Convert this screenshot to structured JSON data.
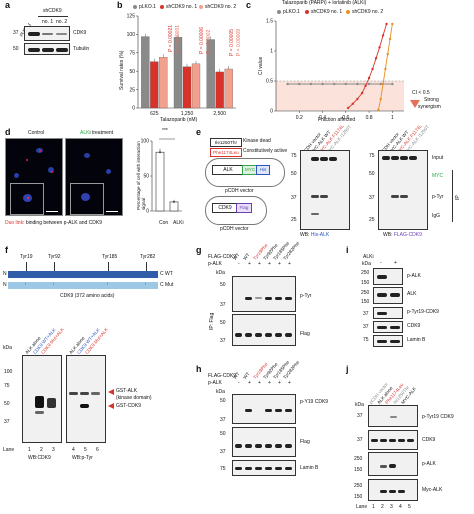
{
  "panels": {
    "a": {
      "letter": "a",
      "header": "shCDK9",
      "lanes": [
        "pLKO.1",
        "no. 1",
        "no. 2"
      ],
      "kda": [
        "37",
        "50"
      ],
      "bands": [
        "CDK9",
        "Tubulin"
      ]
    },
    "b": {
      "letter": "b",
      "legend": [
        "pLKO.1",
        "shCDK9 no. 1",
        "shCDK9 no. 2"
      ],
      "ylabel": "Survival rates (%)",
      "xlabel": "Talazoparib (nM)",
      "pvalues": [
        "P = 0.00021",
        "P = 0.00001",
        "P = 0.00006",
        "P = 0.0002",
        "P = 0.00005",
        "P = 0.00009"
      ]
    },
    "c": {
      "letter": "c",
      "title": "Talazoparib (PARPi) + lorlatinib (ALKi)",
      "legend": [
        "pLKO.1",
        "shCDK9 no. 1",
        "shCDK9 no. 2"
      ],
      "ylabel": "CI value",
      "xlabel": "Fraction affected",
      "annotation_lines": [
        "CI < 0.5",
        "Strong",
        "synergism"
      ]
    },
    "d": {
      "letter": "d",
      "labels": [
        "Control",
        "ALK",
        "i treatment"
      ],
      "caption_red": "Duo link",
      "caption_rest": ": binding between p-ALK and CDK9",
      "ylabel": "Percentage of cell with interaction signal",
      "sig": "***",
      "xcats": [
        "Con",
        "ALKi"
      ]
    },
    "e": {
      "letter": "e",
      "kinase_dead": "Ile1250Thr",
      "kinase_dead_label": "Kinase dead",
      "active": "Phe1174Leu",
      "active_label": "Constitutively active",
      "alk": "ALK",
      "myc": "MYC",
      "his": "His",
      "vector": "pCDH vector",
      "cdk9": "CDK9",
      "flag": "Flag",
      "lanes": [
        "pCDH vector",
        "MYC-ALK WT",
        "MYC-ALK F1174L",
        "MYC-ALK I1250T"
      ],
      "kda": [
        "75",
        "50",
        "37",
        "25",
        "75",
        "50",
        "37",
        "25"
      ],
      "side": [
        "Input",
        "MYC",
        "p-Tyr",
        "IgG",
        "IP"
      ],
      "wb1_prefix": "WB: ",
      "wb1_tag": "His-ALK",
      "wb2_prefix": "WB: ",
      "wb2_tag": "FLAG-CDK9"
    },
    "f": {
      "letter": "f",
      "sites": [
        "Tyr19",
        "Tyr92",
        "Tyr185",
        "Tyr282"
      ],
      "n": "N",
      "wt": "C WT",
      "mut": "C Mut",
      "caption": "CDK9 (372 amino acids)",
      "kda_label": "kDa",
      "kda": [
        "100",
        "75",
        "50",
        "37"
      ],
      "lanes_blot1": [
        "ALK alone",
        "CDK9 WT+ALK",
        "CDK9 Mut+ALK"
      ],
      "lanes_blot2": [
        "ALK alone",
        "CDK9 WT+ALK",
        "CDK9 Mut+ALK"
      ],
      "arrows": [
        "GST-ALK",
        "(kinase domain)",
        "GST-CDK9"
      ],
      "lane_label": "Lane",
      "lane_nums": [
        "1",
        "2",
        "3",
        "4",
        "5",
        "6"
      ],
      "wb": [
        "WB:CDK9",
        "WB:p-Tyr"
      ]
    },
    "g": {
      "letter": "g",
      "row1": "FLAG-CDK9",
      "row2": "p-ALK",
      "signs": [
        "-",
        "+",
        "+",
        "+",
        "+",
        "+"
      ],
      "lanes": [
        "WT",
        "WT",
        "Tyr19Phe",
        "Tyr92Phe",
        "Tyr185Phe",
        "Tyr282Phe"
      ],
      "kda_label": "kDa",
      "kda": [
        "50",
        "37",
        "50",
        "37"
      ],
      "ip": "IP: Flag",
      "bands": [
        "p-Tyr",
        "Flag"
      ]
    },
    "h": {
      "letter": "h",
      "row1": "FLAG-CDK9",
      "row2": "p-ALK",
      "signs": [
        "+",
        "-",
        "+",
        "-",
        "+",
        "-",
        "+",
        "-",
        "+"
      ],
      "lanes": [
        "WT",
        "WT",
        "Tyr19Phe",
        "Tyr92Phe",
        "Tyr185Phe",
        "Tyr282Phe",
        "-"
      ],
      "kda_label": "kDa",
      "kda": [
        "50",
        "37",
        "50",
        "37",
        "75"
      ],
      "bands": [
        "p-Y19 CDK9",
        "Flag",
        "Lamin B"
      ]
    },
    "i": {
      "letter": "i",
      "row": "ALKi",
      "signs": [
        "-",
        "+"
      ],
      "kda_label": "kDa",
      "kda": [
        "250",
        "150",
        "250",
        "150",
        "37",
        "37",
        "75"
      ],
      "bands": [
        "p-ALK",
        "ALK",
        "p-Tyr19-CDK9",
        "CDK9",
        "Lamin B"
      ]
    },
    "j": {
      "letter": "j",
      "lanes": [
        "pCDH vector",
        "ALK alone",
        "Phe1174Leu",
        "Ile1250Thr",
        "MYC-ALK"
      ],
      "kda_label": "kDa",
      "kda": [
        "37",
        "37",
        "250",
        "150",
        "250",
        "150"
      ],
      "bands": [
        "p-Tyr19 CDK9",
        "CDK9",
        "p-ALK",
        "Myc-ALK"
      ],
      "lane_label": "Lane",
      "lane_nums": [
        "1",
        "2",
        "3",
        "4",
        "5"
      ]
    }
  },
  "chart_data": [
    {
      "type": "bar",
      "title": "",
      "xlabel": "Talazoparib (nM)",
      "ylabel": "Survival rates (%)",
      "categories": [
        "625",
        "1,250",
        "2,500"
      ],
      "ylim": [
        0,
        125
      ],
      "yticks": [
        0,
        25,
        50,
        75,
        100,
        125
      ],
      "series": [
        {
          "name": "pLKO.1",
          "values": [
            97,
            96,
            93
          ],
          "color": "#8a8a8a"
        },
        {
          "name": "shCDK9 no. 1",
          "values": [
            63,
            56,
            49
          ],
          "color": "#d8332a"
        },
        {
          "name": "shCDK9 no. 2",
          "values": [
            69,
            60,
            53
          ],
          "color": "#f2a08e"
        }
      ]
    },
    {
      "type": "line",
      "title": "Talazoparib (PARPi) + lorlatinib (ALKi)",
      "xlabel": "Fraction affected",
      "ylabel": "CI value",
      "xlim": [
        0,
        1.1
      ],
      "ylim": [
        0,
        1.5
      ],
      "xticks": [
        0.2,
        0.4,
        0.6,
        0.8,
        1.0
      ],
      "yticks": [
        0,
        0.5,
        1.0,
        1.5
      ],
      "series": [
        {
          "name": "pLKO.1",
          "color": "#8a8a8a",
          "points": [
            [
              0.1,
              0.45
            ],
            [
              0.2,
              0.45
            ],
            [
              0.3,
              0.45
            ],
            [
              0.4,
              0.45
            ],
            [
              0.5,
              0.45
            ],
            [
              0.6,
              0.45
            ],
            [
              0.7,
              0.45
            ],
            [
              0.8,
              0.45
            ],
            [
              0.9,
              0.45
            ],
            [
              1.0,
              0.45
            ]
          ]
        },
        {
          "name": "shCDK9 no. 1",
          "color": "#d8332a",
          "points": [
            [
              0.62,
              0.05
            ],
            [
              0.66,
              0.12
            ],
            [
              0.7,
              0.2
            ],
            [
              0.74,
              0.3
            ],
            [
              0.77,
              0.42
            ],
            [
              0.8,
              0.55
            ],
            [
              0.83,
              0.7
            ],
            [
              0.86,
              0.88
            ],
            [
              0.89,
              1.06
            ],
            [
              0.92,
              1.26
            ],
            [
              0.95,
              1.45
            ]
          ]
        },
        {
          "name": "shCDK9 no. 2",
          "color": "#e89020",
          "points": [
            [
              0.88,
              0.02
            ],
            [
              0.9,
              0.2
            ],
            [
              0.92,
              0.45
            ],
            [
              0.94,
              0.7
            ],
            [
              0.96,
              0.95
            ],
            [
              0.98,
              1.2
            ],
            [
              1.0,
              1.45
            ]
          ]
        }
      ]
    },
    {
      "type": "bar",
      "title": "",
      "xlabel": "",
      "ylabel": "Percentage of cell with interaction signal",
      "categories": [
        "Con",
        "ALKi"
      ],
      "values": [
        84,
        13
      ],
      "errors": [
        5,
        3
      ],
      "ylim": [
        0,
        100
      ],
      "yticks": [
        0,
        50,
        100
      ]
    }
  ]
}
